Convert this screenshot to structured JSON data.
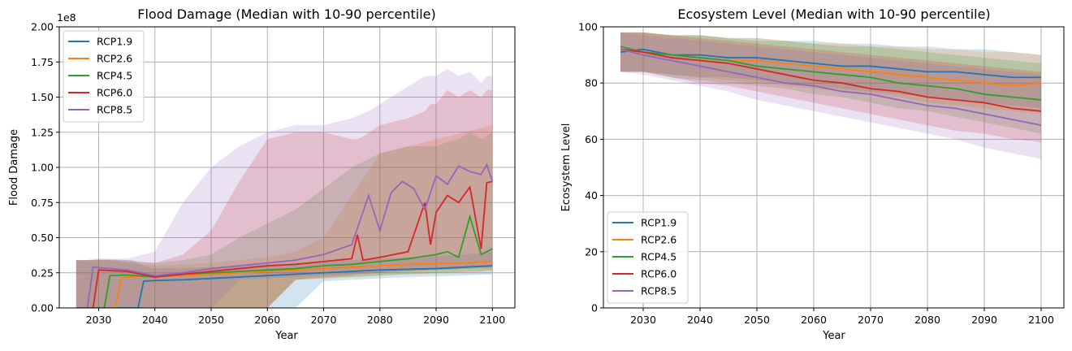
{
  "chart_data": [
    {
      "type": "line",
      "title": "Flood Damage (Median with 10-90 percentile)",
      "xlabel": "Year",
      "ylabel": "Flood Damage",
      "y_offset_label": "1e8",
      "xlim": [
        2023,
        2104
      ],
      "ylim": [
        0,
        200000000
      ],
      "x_ticks": [
        2030,
        2040,
        2050,
        2060,
        2070,
        2080,
        2090,
        2100
      ],
      "x_tick_labels": [
        "2030",
        "2040",
        "2050",
        "2060",
        "2070",
        "2080",
        "2090",
        "2100"
      ],
      "y_ticks": [
        0,
        25000000,
        50000000,
        75000000,
        100000000,
        125000000,
        150000000,
        175000000,
        200000000
      ],
      "y_tick_labels": [
        "0.00",
        "0.25",
        "0.50",
        "0.75",
        "1.00",
        "1.25",
        "1.50",
        "1.75",
        "2.00"
      ],
      "grid": true,
      "legend_position": "upper-left",
      "band": "10-90 percentile (shaded)",
      "series": [
        {
          "name": "RCP1.9",
          "color": "#1f77b4",
          "x": [
            2026,
            2036,
            2037,
            2038,
            2040,
            2045,
            2050,
            2055,
            2060,
            2065,
            2070,
            2075,
            2080,
            2085,
            2090,
            2095,
            2100
          ],
          "median": [
            0,
            0,
            0,
            19000000,
            19500000,
            20000000,
            21000000,
            22000000,
            23000000,
            24000000,
            25000000,
            26000000,
            27000000,
            27500000,
            28000000,
            29000000,
            30000000
          ],
          "p10": [
            0,
            0,
            0,
            0,
            0,
            0,
            0,
            0,
            0,
            0,
            19000000,
            20000000,
            21000000,
            22000000,
            22500000,
            23000000,
            24000000
          ],
          "p90": [
            34000000,
            34000000,
            32000000,
            30000000,
            28000000,
            28500000,
            29000000,
            30000000,
            31000000,
            32000000,
            33000000,
            34000000,
            35000000,
            36000000,
            37000000,
            38000000,
            40000000
          ]
        },
        {
          "name": "RCP2.6",
          "color": "#ff7f0e",
          "x": [
            2026,
            2033,
            2034,
            2035,
            2040,
            2045,
            2050,
            2055,
            2060,
            2065,
            2070,
            2075,
            2080,
            2085,
            2090,
            2095,
            2100
          ],
          "median": [
            0,
            0,
            21500000,
            22000000,
            22500000,
            23000000,
            24000000,
            25000000,
            26000000,
            27000000,
            28000000,
            29000000,
            30000000,
            31000000,
            31500000,
            32000000,
            33000000
          ],
          "p10": [
            0,
            0,
            0,
            0,
            0,
            0,
            0,
            0,
            0,
            20000000,
            21000000,
            22000000,
            23000000,
            24000000,
            24500000,
            25000000,
            26000000
          ],
          "p90": [
            34000000,
            34000000,
            33000000,
            32000000,
            30000000,
            31000000,
            32000000,
            34000000,
            36000000,
            40000000,
            50000000,
            80000000,
            110000000,
            115000000,
            120000000,
            125000000,
            130000000
          ]
        },
        {
          "name": "RCP4.5",
          "color": "#2ca02c",
          "x": [
            2026,
            2031,
            2032,
            2035,
            2040,
            2045,
            2050,
            2055,
            2060,
            2065,
            2070,
            2075,
            2080,
            2085,
            2090,
            2092,
            2094,
            2096,
            2098,
            2100
          ],
          "median": [
            0,
            0,
            23000000,
            23500000,
            22000000,
            24000000,
            25000000,
            26000000,
            27000000,
            28000000,
            30000000,
            31000000,
            33000000,
            35000000,
            38000000,
            40000000,
            36000000,
            65000000,
            38000000,
            42000000
          ],
          "p10": [
            0,
            0,
            0,
            0,
            0,
            0,
            0,
            0,
            0,
            20000000,
            21000000,
            22000000,
            23000000,
            24000000,
            25000000,
            25000000,
            25500000,
            26000000,
            26000000,
            27000000
          ],
          "p90": [
            34000000,
            34000000,
            34000000,
            33000000,
            32000000,
            34000000,
            38000000,
            50000000,
            60000000,
            70000000,
            85000000,
            100000000,
            110000000,
            115000000,
            115000000,
            118000000,
            120000000,
            125000000,
            120000000,
            125000000
          ]
        },
        {
          "name": "RCP6.0",
          "color": "#d62728",
          "x": [
            2026,
            2029,
            2030,
            2035,
            2040,
            2045,
            2050,
            2055,
            2060,
            2065,
            2070,
            2075,
            2076,
            2077,
            2080,
            2085,
            2088,
            2089,
            2090,
            2092,
            2094,
            2096,
            2098,
            2099,
            2100
          ],
          "median": [
            0,
            0,
            27000000,
            26000000,
            22000000,
            24000000,
            26000000,
            28000000,
            30000000,
            31000000,
            33000000,
            35000000,
            52000000,
            34000000,
            36000000,
            40000000,
            75000000,
            45000000,
            68000000,
            80000000,
            75000000,
            86000000,
            42000000,
            89000000,
            90000000
          ],
          "p10": [
            0,
            0,
            0,
            0,
            0,
            0,
            0,
            0,
            0,
            20000000,
            22000000,
            23000000,
            24000000,
            24000000,
            25000000,
            26000000,
            26500000,
            27000000,
            27000000,
            27000000,
            27500000,
            28000000,
            28000000,
            28000000,
            28000000
          ],
          "p90": [
            34000000,
            34000000,
            35000000,
            34000000,
            32000000,
            38000000,
            55000000,
            90000000,
            120000000,
            125000000,
            125000000,
            120000000,
            120000000,
            122000000,
            130000000,
            135000000,
            140000000,
            145000000,
            145000000,
            155000000,
            150000000,
            155000000,
            150000000,
            155000000,
            155000000
          ]
        },
        {
          "name": "RCP8.5",
          "color": "#9467bd",
          "x": [
            2026,
            2028,
            2029,
            2035,
            2040,
            2045,
            2050,
            2055,
            2060,
            2065,
            2070,
            2075,
            2078,
            2080,
            2082,
            2084,
            2086,
            2088,
            2090,
            2092,
            2094,
            2096,
            2098,
            2099,
            2100
          ],
          "median": [
            0,
            0,
            29000000,
            27000000,
            23000000,
            25000000,
            28000000,
            30000000,
            32000000,
            34000000,
            38000000,
            45000000,
            80000000,
            55000000,
            82000000,
            90000000,
            85000000,
            70000000,
            94000000,
            88000000,
            101000000,
            97000000,
            95000000,
            102000000,
            90000000
          ],
          "p10": [
            0,
            0,
            0,
            0,
            0,
            0,
            0,
            20000000,
            21000000,
            22000000,
            23000000,
            24000000,
            25000000,
            25000000,
            26000000,
            26500000,
            27000000,
            27000000,
            28000000,
            28000000,
            28500000,
            29000000,
            29000000,
            29000000,
            30000000
          ],
          "p90": [
            34000000,
            34000000,
            35000000,
            35000000,
            40000000,
            75000000,
            100000000,
            115000000,
            125000000,
            130000000,
            130000000,
            135000000,
            140000000,
            145000000,
            150000000,
            155000000,
            160000000,
            165000000,
            165000000,
            170000000,
            165000000,
            168000000,
            160000000,
            165000000,
            165000000
          ]
        }
      ]
    },
    {
      "type": "line",
      "title": "Ecosystem Level (Median with 10-90 percentile)",
      "xlabel": "Year",
      "ylabel": "Ecosystem Level",
      "xlim": [
        2023,
        2104
      ],
      "ylim": [
        0,
        100
      ],
      "x_ticks": [
        2030,
        2040,
        2050,
        2060,
        2070,
        2080,
        2090,
        2100
      ],
      "x_tick_labels": [
        "2030",
        "2040",
        "2050",
        "2060",
        "2070",
        "2080",
        "2090",
        "2100"
      ],
      "y_ticks": [
        0,
        20,
        40,
        60,
        80,
        100
      ],
      "y_tick_labels": [
        "0",
        "20",
        "40",
        "60",
        "80",
        "100"
      ],
      "grid": true,
      "legend_position": "lower-left",
      "band": "10-90 percentile (shaded)",
      "series": [
        {
          "name": "RCP1.9",
          "color": "#1f77b4",
          "x": [
            2026,
            2030,
            2035,
            2040,
            2045,
            2050,
            2055,
            2060,
            2065,
            2070,
            2075,
            2080,
            2085,
            2090,
            2095,
            2100
          ],
          "median": [
            91,
            92,
            90,
            90,
            89,
            89,
            88,
            87,
            86,
            86,
            85,
            84,
            84,
            83,
            82,
            82
          ],
          "p10": [
            84,
            84,
            83,
            82,
            82,
            81,
            80,
            79,
            78,
            77,
            76,
            75,
            74,
            73,
            72,
            71
          ],
          "p90": [
            98,
            98,
            97,
            97,
            96,
            96,
            95,
            95,
            94,
            94,
            93,
            93,
            92,
            92,
            91,
            90
          ]
        },
        {
          "name": "RCP2.6",
          "color": "#ff7f0e",
          "x": [
            2026,
            2030,
            2035,
            2040,
            2045,
            2050,
            2055,
            2060,
            2065,
            2070,
            2075,
            2080,
            2085,
            2090,
            2095,
            2100
          ],
          "median": [
            92,
            91,
            90,
            89,
            88,
            88,
            87,
            86,
            85,
            84,
            83,
            82,
            81,
            80,
            79,
            80
          ],
          "p10": [
            84,
            84,
            83,
            82,
            81,
            80,
            79,
            78,
            77,
            76,
            75,
            73,
            72,
            71,
            70,
            69
          ],
          "p90": [
            98,
            98,
            97,
            97,
            96,
            96,
            95,
            94,
            94,
            93,
            93,
            92,
            92,
            91,
            91,
            90
          ]
        },
        {
          "name": "RCP4.5",
          "color": "#2ca02c",
          "x": [
            2026,
            2030,
            2035,
            2040,
            2045,
            2050,
            2055,
            2060,
            2065,
            2070,
            2075,
            2080,
            2085,
            2090,
            2095,
            2100
          ],
          "median": [
            93,
            91,
            90,
            89,
            88,
            86,
            85,
            84,
            83,
            82,
            80,
            79,
            78,
            76,
            75,
            74
          ],
          "p10": [
            84,
            84,
            82,
            81,
            80,
            79,
            78,
            76,
            75,
            73,
            71,
            70,
            68,
            66,
            64,
            62
          ],
          "p90": [
            98,
            98,
            97,
            97,
            96,
            95,
            95,
            94,
            93,
            93,
            92,
            91,
            90,
            89,
            88,
            87
          ]
        },
        {
          "name": "RCP6.0",
          "color": "#d62728",
          "x": [
            2026,
            2030,
            2035,
            2040,
            2045,
            2050,
            2055,
            2060,
            2065,
            2070,
            2075,
            2080,
            2085,
            2090,
            2095,
            2100
          ],
          "median": [
            92,
            91,
            89,
            88,
            87,
            85,
            83,
            81,
            80,
            78,
            77,
            75,
            74,
            73,
            71,
            70
          ],
          "p10": [
            84,
            84,
            82,
            80,
            79,
            77,
            75,
            73,
            71,
            69,
            67,
            65,
            63,
            62,
            60,
            59
          ],
          "p90": [
            98,
            98,
            97,
            96,
            95,
            94,
            93,
            92,
            91,
            90,
            89,
            88,
            87,
            86,
            85,
            84
          ]
        },
        {
          "name": "RCP8.5",
          "color": "#9467bd",
          "x": [
            2026,
            2030,
            2035,
            2040,
            2045,
            2050,
            2055,
            2060,
            2065,
            2070,
            2075,
            2080,
            2085,
            2090,
            2095,
            2100
          ],
          "median": [
            92,
            90,
            88,
            86,
            84,
            82,
            80,
            79,
            77,
            76,
            74,
            72,
            71,
            69,
            67,
            65
          ],
          "p10": [
            84,
            83,
            81,
            79,
            77,
            74,
            72,
            70,
            68,
            66,
            64,
            62,
            60,
            57,
            55,
            53
          ],
          "p90": [
            98,
            97,
            96,
            95,
            94,
            93,
            92,
            91,
            90,
            89,
            88,
            87,
            86,
            85,
            84,
            83
          ]
        }
      ]
    }
  ]
}
